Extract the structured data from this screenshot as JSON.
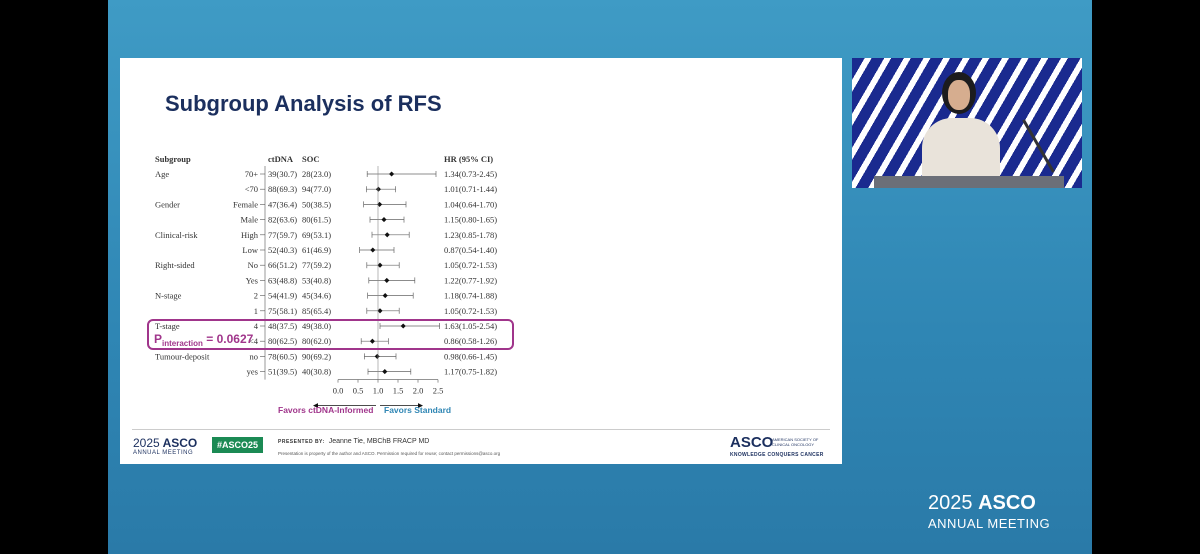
{
  "slide": {
    "title": "Subgroup Analysis of RFS",
    "headers": {
      "subgroup": "Subgroup",
      "ctdna": "ctDNA",
      "soc": "SOC",
      "hr": "HR (95% CI)"
    },
    "rows": [
      {
        "group": "Age",
        "level": "70+",
        "ctdna": "39(30.7)",
        "soc": "28(23.0)",
        "hr": 1.34,
        "lo": 0.73,
        "hi": 2.45,
        "hr_text": "1.34(0.73-2.45)"
      },
      {
        "group": "",
        "level": "<70",
        "ctdna": "88(69.3)",
        "soc": "94(77.0)",
        "hr": 1.01,
        "lo": 0.71,
        "hi": 1.44,
        "hr_text": "1.01(0.71-1.44)"
      },
      {
        "group": "Gender",
        "level": "Female",
        "ctdna": "47(36.4)",
        "soc": "50(38.5)",
        "hr": 1.04,
        "lo": 0.64,
        "hi": 1.7,
        "hr_text": "1.04(0.64-1.70)"
      },
      {
        "group": "",
        "level": "Male",
        "ctdna": "82(63.6)",
        "soc": "80(61.5)",
        "hr": 1.15,
        "lo": 0.8,
        "hi": 1.65,
        "hr_text": "1.15(0.80-1.65)"
      },
      {
        "group": "Clinical-risk",
        "level": "High",
        "ctdna": "77(59.7)",
        "soc": "69(53.1)",
        "hr": 1.23,
        "lo": 0.85,
        "hi": 1.78,
        "hr_text": "1.23(0.85-1.78)"
      },
      {
        "group": "",
        "level": "Low",
        "ctdna": "52(40.3)",
        "soc": "61(46.9)",
        "hr": 0.87,
        "lo": 0.54,
        "hi": 1.4,
        "hr_text": "0.87(0.54-1.40)"
      },
      {
        "group": "Right-sided",
        "level": "No",
        "ctdna": "66(51.2)",
        "soc": "77(59.2)",
        "hr": 1.05,
        "lo": 0.72,
        "hi": 1.53,
        "hr_text": "1.05(0.72-1.53)"
      },
      {
        "group": "",
        "level": "Yes",
        "ctdna": "63(48.8)",
        "soc": "53(40.8)",
        "hr": 1.22,
        "lo": 0.77,
        "hi": 1.92,
        "hr_text": "1.22(0.77-1.92)"
      },
      {
        "group": "N-stage",
        "level": "2",
        "ctdna": "54(41.9)",
        "soc": "45(34.6)",
        "hr": 1.18,
        "lo": 0.74,
        "hi": 1.88,
        "hr_text": "1.18(0.74-1.88)"
      },
      {
        "group": "",
        "level": "1",
        "ctdna": "75(58.1)",
        "soc": "85(65.4)",
        "hr": 1.05,
        "lo": 0.72,
        "hi": 1.53,
        "hr_text": "1.05(0.72-1.53)"
      },
      {
        "group": "T-stage",
        "level": "4",
        "ctdna": "48(37.5)",
        "soc": "49(38.0)",
        "hr": 1.63,
        "lo": 1.05,
        "hi": 2.54,
        "hr_text": "1.63(1.05-2.54)"
      },
      {
        "group": "",
        "level": "<4",
        "ctdna": "80(62.5)",
        "soc": "80(62.0)",
        "hr": 0.86,
        "lo": 0.58,
        "hi": 1.26,
        "hr_text": "0.86(0.58-1.26)"
      },
      {
        "group": "Tumour-deposit",
        "level": "no",
        "ctdna": "78(60.5)",
        "soc": "90(69.2)",
        "hr": 0.98,
        "lo": 0.66,
        "hi": 1.45,
        "hr_text": "0.98(0.66-1.45)"
      },
      {
        "group": "",
        "level": "yes",
        "ctdna": "51(39.5)",
        "soc": "40(30.8)",
        "hr": 1.17,
        "lo": 0.75,
        "hi": 1.82,
        "hr_text": "1.17(0.75-1.82)"
      }
    ],
    "axis_ticks": [
      "0.0",
      "0.5",
      "1.0",
      "1.5",
      "2.0",
      "2.5"
    ],
    "axis_range": [
      0,
      2.5
    ],
    "p_interaction": {
      "prefix": "P",
      "sub": "interaction",
      "value": "= 0.0627"
    },
    "favors_left": "Favors ctDNA-Informed",
    "favors_right": "Favors Standard",
    "colors": {
      "highlight": "#a0358b",
      "favors_right": "#2f86b4",
      "title": "#1b2f5e"
    }
  },
  "footer": {
    "year": "2025",
    "brand": "ASCO",
    "annual": "ANNUAL MEETING",
    "hashtag": "#ASCO25",
    "presented_label": "PRESENTED BY:",
    "presenter": "Jeanne Tie, MBChB FRACP MD",
    "disclaimer": "Presentation is property of the author and ASCO. Permission required for reuse; contact permissions@asco.org",
    "logo": "ASCO",
    "society": "AMERICAN SOCIETY OF CLINICAL ONCOLOGY",
    "tagline": "KNOWLEDGE CONQUERS CANCER"
  },
  "corner": {
    "year": "2025",
    "brand": "ASCO",
    "annual": "ANNUAL MEETING"
  }
}
